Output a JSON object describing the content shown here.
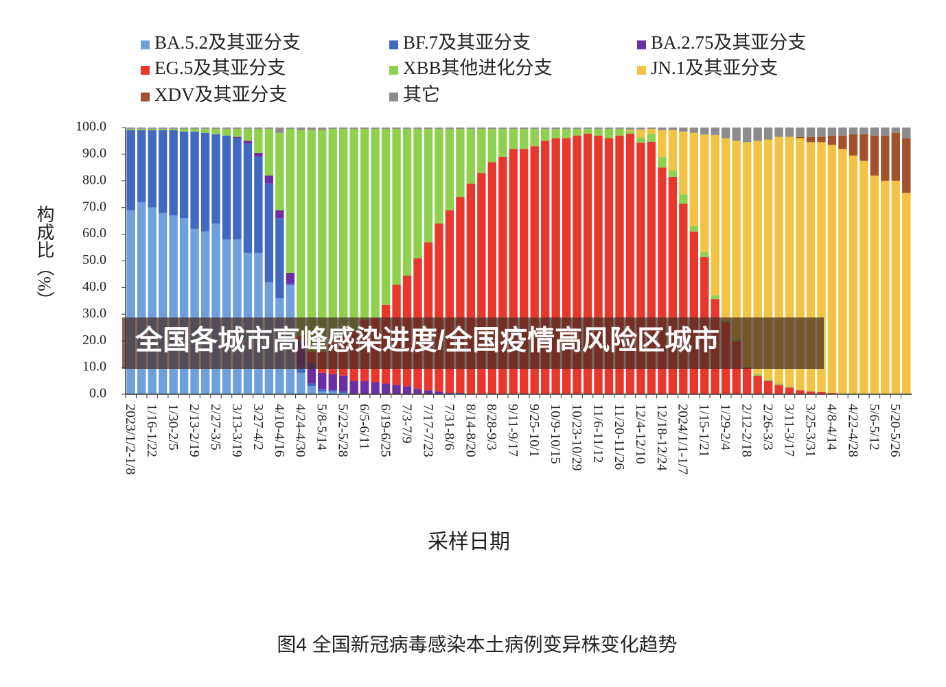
{
  "chart_data": {
    "type": "stacked_bar",
    "y_label": "构成比（%）",
    "x_label": "采样日期",
    "caption": "图4 全国新冠病毒感染本土病例变异株变化趋势",
    "overlay_text": "全国各城市高峰感染进度/全国疫情高风险区城市",
    "ylim": [
      0,
      100
    ],
    "yticks": [
      {
        "value": 0,
        "label": "0.0"
      },
      {
        "value": 10,
        "label": "10.0"
      },
      {
        "value": 20,
        "label": "20.0"
      },
      {
        "value": 30,
        "label": "30.0"
      },
      {
        "value": 40,
        "label": "40.0"
      },
      {
        "value": 50,
        "label": "50.0"
      },
      {
        "value": 60,
        "label": "60.0"
      },
      {
        "value": 70,
        "label": "70.0"
      },
      {
        "value": 80,
        "label": "80.0"
      },
      {
        "value": 90,
        "label": "90.0"
      },
      {
        "value": 100,
        "label": "100.0"
      }
    ],
    "categories": [
      "2023/1/2-1/8",
      null,
      "1/16-1/22",
      null,
      "1/30-2/5",
      null,
      "2/13-2/19",
      null,
      "2/27-3/5",
      null,
      "3/13-3/19",
      null,
      "3/27-4/2",
      null,
      "4/10-4/16",
      null,
      "4/24-4/30",
      null,
      "5/8-5/14",
      null,
      "5/22-5/28",
      null,
      "6/5-6/11",
      null,
      "6/19-6/25",
      null,
      "7/3-7/9",
      null,
      "7/17-7/23",
      null,
      "7/31-8/6",
      null,
      "8/14-8/20",
      null,
      "8/28-9/3",
      null,
      "9/11-9/17",
      null,
      "9/25-10/1",
      null,
      "10/9-10/15",
      null,
      "10/23-10/29",
      null,
      "11/6-11/12",
      null,
      "11/20-11/26",
      null,
      "12/4-12/10",
      null,
      "12/18-12/24",
      null,
      "2024/1/1-1/7",
      null,
      "1/15-1/21",
      null,
      "1/29-2/4",
      null,
      "2/12-2/18",
      null,
      "2/26-3/3",
      null,
      "3/11-3/17",
      null,
      "3/25-3/31",
      null,
      "4/8-4/14",
      null,
      "4/22-4/28",
      null,
      "5/6-5/12",
      null,
      "5/20-5/26",
      null
    ],
    "series": [
      {
        "name": "BA.5.2及其亚分支",
        "color": "#6fa0dc",
        "values": [
          69,
          72,
          70,
          68,
          67,
          66,
          62,
          61,
          64,
          58,
          58,
          53,
          53,
          42,
          36,
          41,
          8,
          3,
          1,
          1,
          0.5,
          0,
          0,
          0,
          0,
          0,
          0,
          0,
          0,
          0,
          0,
          0,
          0,
          0,
          0,
          0,
          0,
          0,
          0,
          0,
          0,
          0,
          0,
          0,
          0,
          0,
          0,
          0,
          0,
          0,
          0,
          0,
          0,
          0,
          0,
          0,
          0,
          0,
          0,
          0,
          0,
          0,
          0,
          0,
          0,
          0,
          0,
          0,
          0,
          0,
          0,
          0,
          0,
          0
        ]
      },
      {
        "name": "BF.7及其亚分支",
        "color": "#4169c0",
        "values": [
          30,
          27,
          29,
          31,
          32,
          32.5,
          36.5,
          37,
          33.5,
          39,
          38,
          41,
          36,
          37,
          30,
          0.5,
          2,
          1,
          1,
          0.5,
          0.5,
          0,
          0,
          0,
          0,
          0,
          0,
          0,
          0,
          0,
          0,
          0,
          0,
          0,
          0,
          0,
          0,
          0,
          0,
          0,
          0,
          0,
          0,
          0,
          0,
          0,
          0,
          0,
          0,
          0,
          0,
          0,
          0,
          0,
          0,
          0,
          0,
          0,
          0,
          0,
          0,
          0,
          0,
          0,
          0,
          0,
          0,
          0,
          0,
          0,
          0,
          0,
          0,
          0
        ]
      },
      {
        "name": "BA.2.75及其亚分支",
        "color": "#6a2fa0",
        "values": [
          0,
          0,
          0,
          0,
          0,
          0,
          0,
          0,
          0,
          0,
          0.5,
          1,
          1.5,
          3,
          3,
          4,
          10,
          8,
          6,
          6,
          6,
          5,
          5,
          4.5,
          4,
          3.5,
          3,
          2,
          1.5,
          1,
          0.5,
          0.5,
          0,
          0,
          0,
          0,
          0,
          0,
          0,
          0,
          0,
          0,
          0,
          0,
          0,
          0,
          0,
          0,
          0,
          0,
          0,
          0,
          0,
          0,
          0,
          0,
          0,
          0,
          0,
          0,
          0,
          0,
          0,
          0,
          0,
          0,
          0,
          0,
          0,
          0,
          0,
          0,
          0,
          0
        ]
      },
      {
        "name": "EG.5及其亚分支",
        "color": "#e8372c",
        "values": [
          0,
          0,
          0,
          0,
          0,
          0,
          0,
          0,
          0,
          0,
          0,
          0,
          0,
          0,
          0,
          0,
          2,
          4,
          8,
          12,
          15,
          19,
          23,
          24,
          29.5,
          37.5,
          41.5,
          49,
          55.5,
          63,
          68.5,
          73.5,
          79,
          83,
          87,
          89,
          92,
          92,
          93,
          95,
          96,
          96,
          97,
          97.7,
          97,
          96,
          97,
          97.7,
          94.3,
          94.6,
          85,
          81.5,
          71.5,
          61,
          51.4,
          35.7,
          27,
          20,
          10,
          7,
          5,
          3.5,
          2.5,
          1.5,
          1,
          0.8,
          0.5,
          0,
          0,
          0,
          0,
          0,
          0,
          0
        ]
      },
      {
        "name": "XBB其他进化分支",
        "color": "#8fd14f",
        "values": [
          0.5,
          0.5,
          0.5,
          0.5,
          0.5,
          1,
          1,
          1.5,
          2,
          2.5,
          3,
          4.5,
          9,
          17.5,
          29,
          54,
          77,
          83,
          83,
          80,
          77.5,
          75.5,
          71.5,
          71,
          66,
          58.5,
          55,
          48.5,
          42.5,
          35.5,
          30.5,
          25.5,
          20.5,
          16.5,
          12.5,
          10.5,
          7.5,
          7.5,
          6.5,
          4.5,
          3.5,
          3.5,
          2.5,
          1.8,
          2.5,
          3.5,
          2.5,
          1,
          2,
          3,
          4,
          2.5,
          3.5,
          2,
          2,
          1.5,
          1,
          1,
          0.5,
          0.5,
          0.5,
          0.5,
          0.3,
          0.2,
          0.2,
          0,
          0,
          0,
          0,
          0,
          0,
          0,
          0,
          0
        ]
      },
      {
        "name": "JN.1及其亚分支",
        "color": "#f3c343",
        "values": [
          0,
          0,
          0,
          0,
          0,
          0,
          0,
          0,
          0,
          0,
          0,
          0,
          0,
          0,
          0,
          0,
          0,
          0,
          0,
          0,
          0,
          0,
          0,
          0,
          0,
          0,
          0,
          0,
          0,
          0,
          0,
          0,
          0,
          0,
          0,
          0,
          0,
          0,
          0,
          0,
          0,
          0,
          0,
          0,
          0,
          0,
          0,
          0.5,
          3,
          1.9,
          10,
          15,
          23.5,
          35,
          44,
          60,
          68,
          74,
          84,
          87.5,
          90,
          92.5,
          93.7,
          94.3,
          93.3,
          93.7,
          93,
          92,
          89.5,
          87.5,
          82,
          80,
          80,
          75.5
        ]
      },
      {
        "name": "XDV及其亚分支",
        "color": "#a0522d",
        "values": [
          0,
          0,
          0,
          0,
          0,
          0,
          0,
          0,
          0,
          0,
          0,
          0,
          0,
          0,
          0,
          0,
          0,
          0,
          0,
          0,
          0,
          0,
          0,
          0,
          0,
          0,
          0,
          0,
          0,
          0,
          0,
          0,
          0,
          0,
          0,
          0,
          0,
          0,
          0,
          0,
          0,
          0,
          0,
          0,
          0,
          0,
          0,
          0,
          0,
          0,
          0,
          0,
          0,
          0,
          0,
          0,
          0,
          0,
          0,
          0,
          0,
          0,
          0,
          0.5,
          2,
          2,
          3.5,
          5,
          8,
          10,
          15,
          17,
          18,
          20.5
        ]
      },
      {
        "name": "其它",
        "color": "#8c8c8c",
        "values": [
          0.5,
          0.5,
          0.5,
          0.5,
          0.5,
          0.5,
          0.5,
          0.5,
          0.5,
          0.5,
          0.5,
          0.5,
          0.5,
          0.5,
          2,
          0.5,
          1,
          1,
          1,
          0.5,
          0.5,
          0.5,
          0.5,
          0.5,
          0.5,
          0.5,
          0.5,
          0.5,
          0.5,
          0.5,
          0.5,
          0.5,
          0.5,
          0.5,
          0.5,
          0.5,
          0.5,
          0.5,
          0.5,
          0.5,
          0.5,
          0.5,
          0.5,
          0.5,
          0.5,
          0.5,
          0.5,
          0.8,
          0.7,
          0.5,
          1,
          1,
          1.5,
          2,
          2.6,
          2.8,
          4,
          5,
          5.5,
          5,
          4.5,
          3.5,
          3.5,
          3.5,
          3.5,
          3.5,
          3,
          3,
          2.5,
          2.5,
          3,
          3,
          2,
          4
        ]
      }
    ]
  }
}
